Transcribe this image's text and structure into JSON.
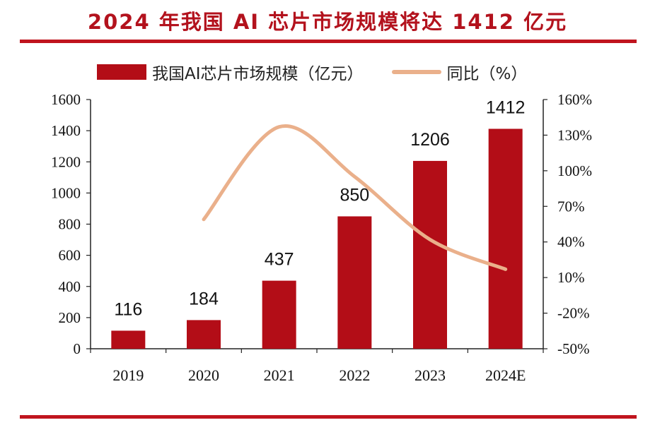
{
  "header": {
    "title": "2024 年我国 AI 芯片市场规模将达 1412 亿元"
  },
  "colors": {
    "bar": "#b30d17",
    "line": "#eab08b",
    "rule": "#c0141e",
    "title": "#b3121d"
  },
  "chart_data": {
    "type": "bar",
    "title": "2024 年我国 AI 芯片市场规模将达 1412 亿元",
    "categories": [
      "2019",
      "2020",
      "2021",
      "2022",
      "2023",
      "2024E"
    ],
    "series": [
      {
        "name": "我国AI芯片市场规模（亿元）",
        "type": "bar",
        "axis": "left",
        "values": [
          116,
          184,
          437,
          850,
          1206,
          1412
        ],
        "labels": [
          "116",
          "184",
          "437",
          "850",
          "1206",
          "1412"
        ]
      },
      {
        "name": "同比（%）",
        "type": "line",
        "axis": "right",
        "values": [
          null,
          59,
          137,
          95,
          42,
          17
        ]
      }
    ],
    "left_axis": {
      "min": 0,
      "max": 1600,
      "ticks": [
        "0",
        "200",
        "400",
        "600",
        "800",
        "1000",
        "1200",
        "1400",
        "1600"
      ]
    },
    "right_axis": {
      "min": -50,
      "max": 160,
      "ticks": [
        "-50%",
        "-20%",
        "10%",
        "40%",
        "70%",
        "100%",
        "130%",
        "160%"
      ]
    },
    "legend": [
      "我国AI芯片市场规模（亿元）",
      "同比（%）"
    ],
    "legend_position": "top"
  }
}
